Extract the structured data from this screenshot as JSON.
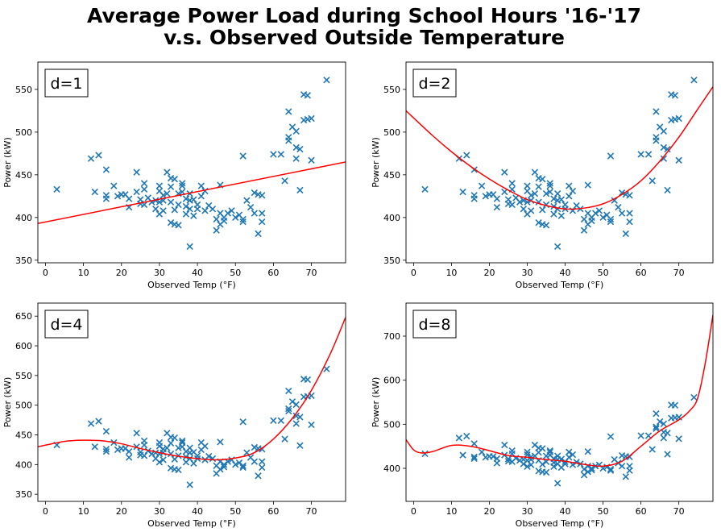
{
  "figure": {
    "title_line1": "Average Power Load during School Hours '16-'17",
    "title_line2": "v.s. Observed Outside Temperature"
  },
  "chart_data": [
    {
      "type": "scatter",
      "panel_label": "d=1",
      "xlabel": "Observed Temp (°F)",
      "ylabel": "Power (kW)",
      "xlim": [
        -2,
        79
      ],
      "ylim": [
        347,
        582
      ],
      "xticks": [
        0,
        10,
        20,
        30,
        40,
        50,
        60,
        70
      ],
      "yticks": [
        350,
        400,
        450,
        500,
        550
      ],
      "grid": false,
      "marker_color": "#1f77b4",
      "fit_color": "#ff0000",
      "fit_line": {
        "degree": 1,
        "x_samples": [
          -2,
          79
        ],
        "y_samples": [
          393,
          465
        ]
      }
    },
    {
      "type": "scatter",
      "panel_label": "d=2",
      "xlabel": "Observed Temp (°F)",
      "ylabel": "Power (kW)",
      "xlim": [
        -2,
        79
      ],
      "ylim": [
        347,
        582
      ],
      "xticks": [
        0,
        10,
        20,
        30,
        40,
        50,
        60,
        70
      ],
      "yticks": [
        350,
        400,
        450,
        500,
        550
      ],
      "grid": false,
      "marker_color": "#1f77b4",
      "fit_color": "#ff0000",
      "fit_line": {
        "degree": 2,
        "x_samples": [
          -2,
          5,
          10,
          15,
          20,
          25,
          30,
          35,
          40,
          45,
          50,
          55,
          60,
          65,
          70,
          75,
          79
        ],
        "y_samples": [
          525,
          496,
          477,
          460,
          445,
          432,
          421,
          414,
          410,
          411,
          416,
          427,
          443,
          466,
          494,
          527,
          553
        ]
      }
    },
    {
      "type": "scatter",
      "panel_label": "d=4",
      "xlabel": "Observed Temp (°F)",
      "ylabel": "Power (kW)",
      "xlim": [
        -2,
        79
      ],
      "ylim": [
        338,
        672
      ],
      "xticks": [
        0,
        10,
        20,
        30,
        40,
        50,
        60,
        70
      ],
      "yticks": [
        350,
        400,
        450,
        500,
        550,
        600,
        650
      ],
      "grid": false,
      "marker_color": "#1f77b4",
      "fit_color": "#ff0000",
      "fit_line": {
        "degree": 4,
        "x_samples": [
          -2,
          5,
          10,
          15,
          20,
          25,
          30,
          35,
          40,
          45,
          50,
          55,
          60,
          65,
          70,
          75,
          79
        ],
        "y_samples": [
          430,
          439,
          441,
          440,
          435,
          427,
          420,
          414,
          410,
          408,
          411,
          420,
          443,
          478,
          525,
          587,
          648
        ]
      }
    },
    {
      "type": "scatter",
      "panel_label": "d=8",
      "xlabel": "Observed Temp (°F)",
      "ylabel": "Power (kW)",
      "xlim": [
        -2,
        79
      ],
      "ylim": [
        325,
        775
      ],
      "xticks": [
        0,
        10,
        20,
        30,
        40,
        50,
        60,
        70
      ],
      "yticks": [
        400,
        500,
        600,
        700
      ],
      "grid": false,
      "marker_color": "#1f77b4",
      "fit_color": "#ff0000",
      "fit_line": {
        "degree": 8,
        "x_samples": [
          -2,
          0,
          2,
          5,
          10,
          15,
          20,
          25,
          30,
          35,
          40,
          45,
          50,
          55,
          60,
          65,
          70,
          73,
          75,
          77,
          79
        ],
        "y_samples": [
          465,
          442,
          435,
          438,
          452,
          450,
          440,
          429,
          425,
          420,
          416,
          409,
          405,
          416,
          450,
          485,
          510,
          532,
          560,
          640,
          748
        ]
      }
    }
  ],
  "points": {
    "x": [
      3,
      12,
      13,
      14,
      16,
      16,
      16,
      18,
      19,
      20,
      21,
      22,
      22,
      24,
      24,
      25,
      25,
      26,
      26,
      26,
      27,
      28,
      29,
      29,
      30,
      30,
      30,
      30,
      31,
      31,
      31,
      32,
      32,
      33,
      33,
      33,
      33,
      34,
      34,
      34,
      35,
      35,
      35,
      36,
      36,
      36,
      37,
      37,
      37,
      38,
      38,
      38,
      38,
      39,
      39,
      40,
      40,
      41,
      41,
      42,
      42,
      43,
      44,
      45,
      45,
      46,
      46,
      46,
      47,
      47,
      48,
      49,
      50,
      51,
      52,
      52,
      52,
      53,
      54,
      55,
      55,
      56,
      56,
      57,
      57,
      57,
      60,
      62,
      63,
      64,
      64,
      64,
      65,
      66,
      66,
      66,
      67,
      67,
      68,
      68,
      69,
      69,
      70,
      70,
      74
    ],
    "y": [
      433,
      469,
      430,
      473,
      456,
      426,
      422,
      437,
      425,
      427,
      427,
      412,
      422,
      453,
      430,
      421,
      416,
      433,
      440,
      415,
      423,
      418,
      410,
      420,
      404,
      418,
      431,
      437,
      408,
      426,
      420,
      453,
      428,
      394,
      418,
      436,
      446,
      392,
      409,
      445,
      391,
      415,
      428,
      430,
      437,
      440,
      422,
      404,
      413,
      366,
      428,
      420,
      410,
      402,
      421,
      415,
      410,
      425,
      437,
      431,
      408,
      414,
      410,
      385,
      398,
      392,
      405,
      438,
      400,
      396,
      405,
      408,
      400,
      403,
      472,
      398,
      395,
      420,
      412,
      405,
      429,
      427,
      381,
      426,
      405,
      395,
      474,
      474,
      443,
      524,
      494,
      490,
      506,
      501,
      469,
      482,
      480,
      432,
      514,
      544,
      515,
      543,
      467,
      516,
      561
    ]
  }
}
